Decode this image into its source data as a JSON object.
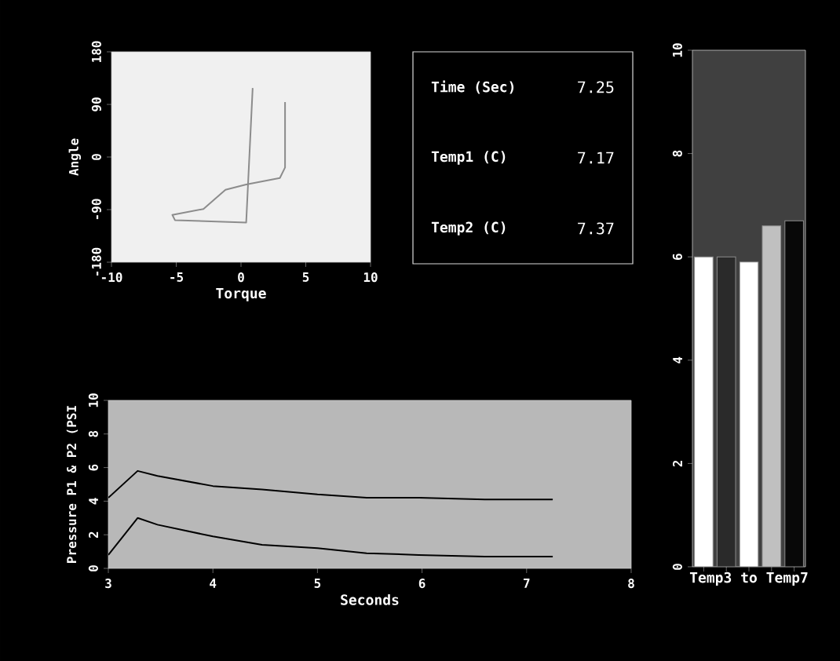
{
  "chart_data": [
    {
      "type": "line",
      "xlabel": "Torque",
      "ylabel": "Angle",
      "xlim": [
        -10,
        10
      ],
      "ylim": [
        -180,
        180
      ],
      "xticks": [
        -10,
        -5,
        0,
        5,
        10
      ],
      "yticks": [
        -180,
        -90,
        0,
        90,
        180
      ],
      "series": [
        {
          "color": "#8c8c8c",
          "x": [
            0.9,
            0.4,
            -5.1,
            -5.3,
            -2.9,
            -1.2,
            0.4,
            3.0,
            3.4,
            3.4
          ],
          "values": [
            118,
            -112,
            -108,
            -99,
            -89,
            -56,
            -47,
            -36,
            -18,
            94
          ]
        }
      ]
    },
    {
      "type": "other",
      "categories": [
        "Time (Sec)",
        "Temp1 (C)",
        "Temp2 (C)"
      ],
      "values": [
        7.25,
        7.17,
        7.37
      ],
      "data_labels": true
    },
    {
      "type": "bar",
      "categories": [
        null,
        null,
        null,
        null,
        null
      ],
      "values": [
        6.0,
        6.0,
        5.9,
        6.6,
        6.7
      ],
      "colors": [
        "#ffffff",
        "#2a2a2a",
        "#ffffff",
        "#c0c0c0",
        "#080808"
      ],
      "xlabel": "Temp3 to Temp7",
      "ylim": [
        0,
        10
      ],
      "yticks": [
        0,
        2,
        4,
        6,
        8,
        10
      ],
      "tick_labels": "y"
    },
    {
      "type": "line",
      "xlabel": "Seconds",
      "ylabel": "Pressure P1 & P2 (PSI",
      "xlim": [
        3,
        8
      ],
      "ylim": [
        0,
        10
      ],
      "xticks": [
        3,
        4,
        5,
        6,
        7,
        8
      ],
      "yticks": [
        0,
        2,
        4,
        6,
        8,
        10
      ],
      "series": [
        {
          "color": "#000000",
          "x": [
            3,
            3.28,
            3.47,
            4,
            4.47,
            5,
            5.47,
            5.97,
            6.6,
            7.25
          ],
          "values": [
            4.2,
            5.8,
            5.5,
            4.9,
            4.7,
            4.4,
            4.2,
            4.2,
            4.1,
            4.1
          ]
        },
        {
          "color": "#000000",
          "x": [
            3,
            3.28,
            3.47,
            4,
            4.47,
            5,
            5.47,
            5.97,
            6.6,
            7.25
          ],
          "values": [
            0.8,
            3.0,
            2.6,
            1.9,
            1.4,
            1.2,
            0.9,
            0.8,
            0.7,
            0.7
          ]
        }
      ]
    }
  ]
}
